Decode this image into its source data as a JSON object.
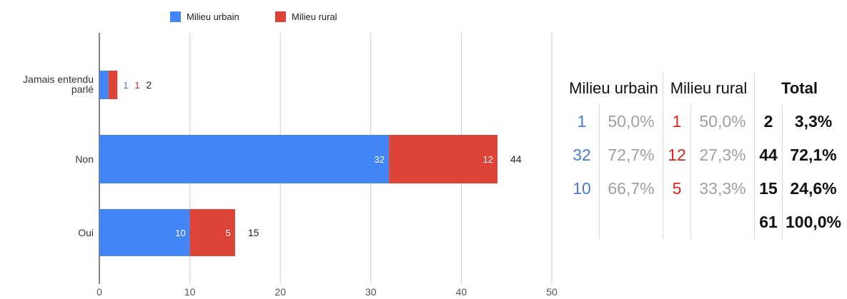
{
  "chart_data": {
    "type": "bar",
    "orientation": "horizontal",
    "stacked": true,
    "categories": [
      "Jamais entendu parlé",
      "Non",
      "Oui"
    ],
    "series": [
      {
        "name": "Milieu urbain",
        "color": "#4285f4",
        "label_color": "#4a7bd0",
        "values": [
          1,
          32,
          10
        ]
      },
      {
        "name": "Milieu rural",
        "color": "#db4437",
        "label_color": "#e0231d",
        "values": [
          1,
          12,
          5
        ]
      }
    ],
    "totals": [
      2,
      44,
      15
    ],
    "xlim": [
      0,
      50
    ],
    "xticks": [
      0,
      10,
      20,
      30,
      40,
      50
    ],
    "grid": true,
    "legend_position": "top"
  },
  "table": {
    "headers": [
      "Milieu urbain",
      "Milieu rural",
      "Total"
    ],
    "rows": [
      {
        "urban_n": "1",
        "urban_pct": "50,0%",
        "rural_n": "1",
        "rural_pct": "50,0%",
        "total_n": "2",
        "total_pct": "3,3%"
      },
      {
        "urban_n": "32",
        "urban_pct": "72,7%",
        "rural_n": "12",
        "rural_pct": "27,3%",
        "total_n": "44",
        "total_pct": "72,1%"
      },
      {
        "urban_n": "10",
        "urban_pct": "66,7%",
        "rural_n": "5",
        "rural_pct": "33,3%",
        "total_n": "15",
        "total_pct": "24,6%"
      },
      {
        "urban_n": "",
        "urban_pct": "",
        "rural_n": "",
        "rural_pct": "",
        "total_n": "61",
        "total_pct": "100,0%"
      }
    ]
  }
}
